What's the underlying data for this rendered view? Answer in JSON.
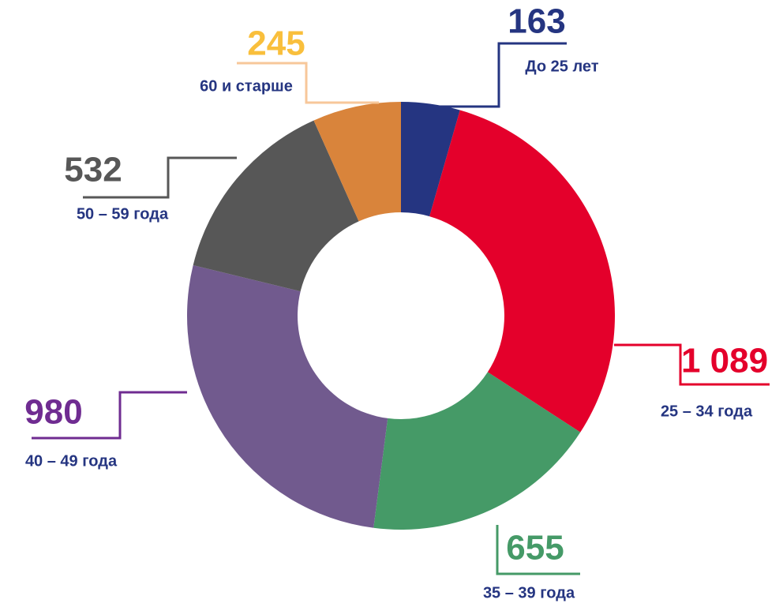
{
  "chart_data": {
    "type": "donut",
    "categories": [
      "До 25 лет",
      "25 – 34 года",
      "35 – 39 года",
      "40 – 49 года",
      "50 – 59 года",
      "60 и старше"
    ],
    "values": [
      163,
      1089,
      655,
      980,
      532,
      245
    ],
    "value_labels": [
      "163",
      "1 089",
      "655",
      "980",
      "532",
      "245"
    ],
    "colors": [
      "#253581",
      "#e4002b",
      "#459a67",
      "#715a8e",
      "#575757",
      "#d9843b"
    ],
    "label_colors": [
      "#253581",
      "#e4002b",
      "#459a67",
      "#6f2c91",
      "#575757",
      "#f9bf3c"
    ],
    "line_colors": [
      "#253581",
      "#e4002b",
      "#459a67",
      "#6f2c91",
      "#575757",
      "#f7c79a"
    ],
    "category_color": "#253581"
  }
}
